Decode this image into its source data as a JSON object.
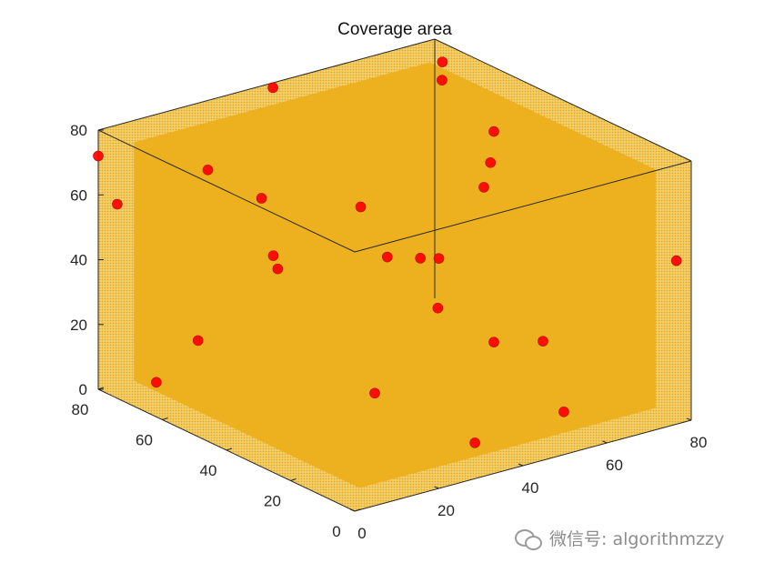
{
  "chart_data": {
    "type": "scatter3d",
    "title": "Coverage area",
    "xlim": [
      0,
      80
    ],
    "ylim": [
      0,
      80
    ],
    "zlim": [
      0,
      80
    ],
    "x_ticks": [
      "0",
      "20",
      "40",
      "60",
      "80"
    ],
    "y_ticks": [
      "0",
      "20",
      "40",
      "60",
      "80"
    ],
    "z_ticks": [
      "0",
      "20",
      "40",
      "60",
      "80"
    ],
    "coverage_color": "#edb120",
    "marker_color": "#ff0000",
    "grid": false,
    "points": [
      {
        "x": 7,
        "y": 55,
        "z": 77
      },
      {
        "x": 40,
        "y": 78,
        "z": 80
      },
      {
        "x": 3,
        "y": 33,
        "z": 80
      },
      {
        "x": 78,
        "y": 75,
        "z": 76
      },
      {
        "x": 0,
        "y": 80,
        "z": 72
      },
      {
        "x": 78,
        "y": 2,
        "z": 49
      },
      {
        "x": 75,
        "y": 55,
        "z": 65
      },
      {
        "x": 65,
        "y": 45,
        "z": 56
      },
      {
        "x": 38,
        "y": 48,
        "z": 58
      },
      {
        "x": 3,
        "y": 78,
        "z": 57
      },
      {
        "x": 16,
        "y": 45,
        "z": 48
      },
      {
        "x": 68,
        "y": 62,
        "z": 80
      },
      {
        "x": 40,
        "y": 32,
        "z": 49
      },
      {
        "x": 10,
        "y": 62,
        "z": 20
      },
      {
        "x": 34,
        "y": 70,
        "z": 34
      },
      {
        "x": 35,
        "y": 20,
        "z": 41
      },
      {
        "x": 52,
        "y": 42,
        "z": 40
      },
      {
        "x": 55,
        "y": 62,
        "z": 30
      },
      {
        "x": 60,
        "y": 20,
        "z": 22
      },
      {
        "x": 20,
        "y": 20,
        "z": 20
      },
      {
        "x": 40,
        "y": 15,
        "z": 0
      },
      {
        "x": 75,
        "y": 55,
        "z": 0
      },
      {
        "x": 52,
        "y": 3,
        "z": 11
      },
      {
        "x": 78,
        "y": 60,
        "z": 52
      },
      {
        "x": 10,
        "y": 75,
        "z": 1
      }
    ]
  },
  "watermark": {
    "icon": "wechat-icon",
    "text": "微信号: algorithmzzy"
  }
}
